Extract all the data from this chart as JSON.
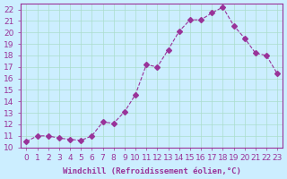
{
  "x": [
    0,
    1,
    2,
    3,
    4,
    5,
    6,
    7,
    8,
    9,
    10,
    11,
    12,
    13,
    14,
    15,
    16,
    17,
    18,
    19,
    20,
    21,
    22,
    23
  ],
  "y": [
    10.5,
    11.0,
    11.0,
    10.8,
    10.7,
    10.6,
    11.0,
    12.2,
    12.1,
    13.1,
    14.6,
    17.2,
    17.0,
    18.5,
    20.1,
    21.1,
    21.1,
    21.7,
    22.2,
    20.6,
    19.5,
    18.2,
    18.0,
    16.4
  ],
  "line_color": "#993399",
  "marker": "D",
  "marker_size": 3,
  "bg_color": "#cceeff",
  "grid_color": "#aaddcc",
  "xlabel": "Windchill (Refroidissement éolien,°C)",
  "ylabel_ticks": [
    10,
    11,
    12,
    13,
    14,
    15,
    16,
    17,
    18,
    19,
    20,
    21,
    22
  ],
  "xlim": [
    -0.5,
    23.5
  ],
  "ylim": [
    10,
    22.5
  ],
  "axis_color": "#993399",
  "tick_color": "#993399",
  "font_size": 6.5,
  "xlabel_fontsize": 6.5,
  "line_width": 0.8
}
